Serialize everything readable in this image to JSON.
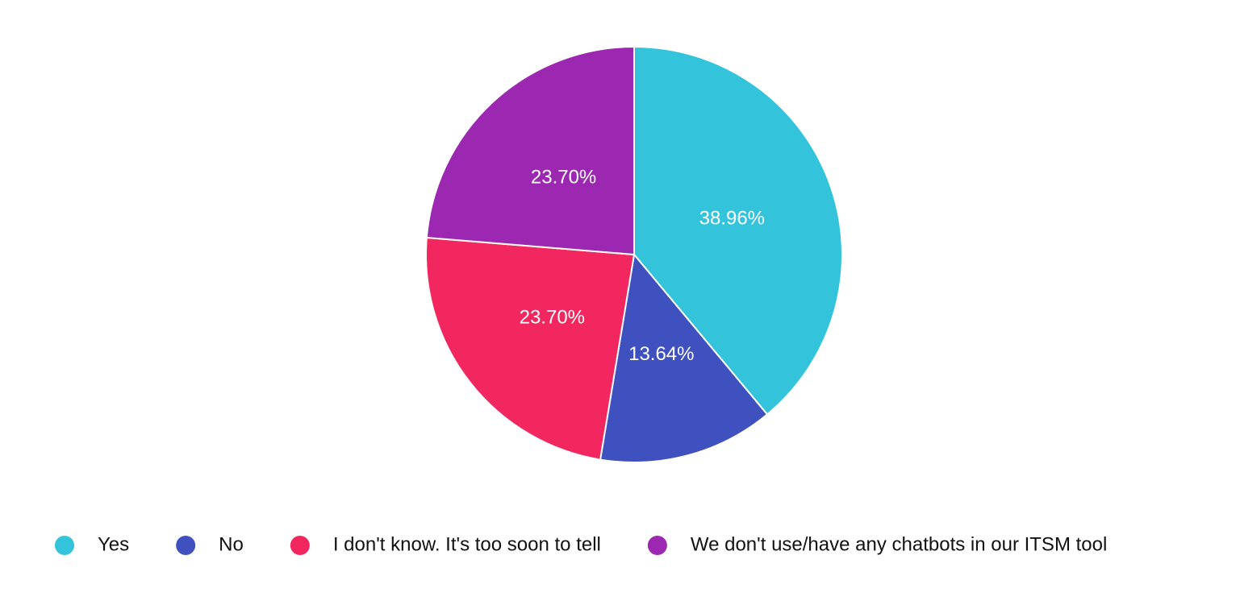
{
  "chart_data": {
    "type": "pie",
    "categories": [
      "Yes",
      "No",
      "I don't know. It's too soon to tell",
      "We don't use/have any chatbots in our ITSM tool"
    ],
    "values": [
      38.96,
      13.64,
      23.7,
      23.7
    ],
    "value_labels": [
      "38.96%",
      "13.64%",
      "23.70%",
      "23.70%"
    ],
    "colors": [
      "#33c3db",
      "#3f51bf",
      "#f2275f",
      "#9c27b0"
    ],
    "legend": "bottom"
  }
}
